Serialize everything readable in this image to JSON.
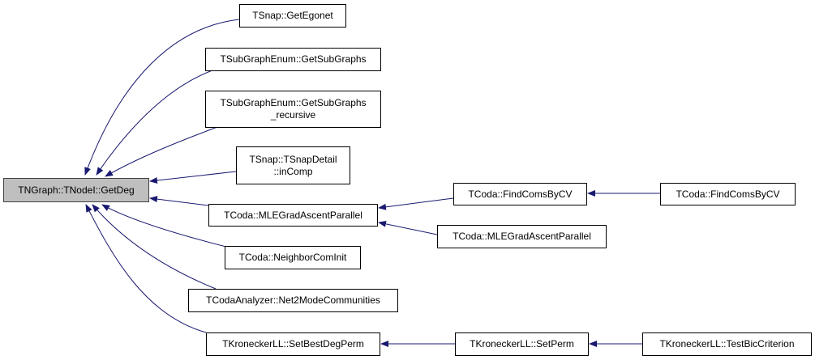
{
  "colors": {
    "edge": "#191970",
    "root_fill": "#bfbfbf",
    "node_border": "#000000"
  },
  "root": "TNGraph::TNodeI::GetDeg",
  "nodes": {
    "egonet": "TSnap::GetEgonet",
    "subgraphs": "TSubGraphEnum::GetSubGraphs",
    "subgraphs_recursive": "TSubGraphEnum::GetSubGraphs\n_recursive",
    "incomp": "TSnap::TSnapDetail\n::inComp",
    "mlegrad": "TCoda::MLEGradAscentParallel",
    "neighborcom": "TCoda::NeighborComInit",
    "net2mode": "TCodaAnalyzer::Net2ModeCommunities",
    "setbestdeg": "TKroneckerLL::SetBestDegPerm",
    "findcoms1": "TCoda::FindComsByCV",
    "mlegrad2": "TCoda::MLEGradAscentParallel",
    "findcoms2": "TCoda::FindComsByCV",
    "setperm": "TKroneckerLL::SetPerm",
    "testbic": "TKroneckerLL::TestBicCriterion"
  }
}
